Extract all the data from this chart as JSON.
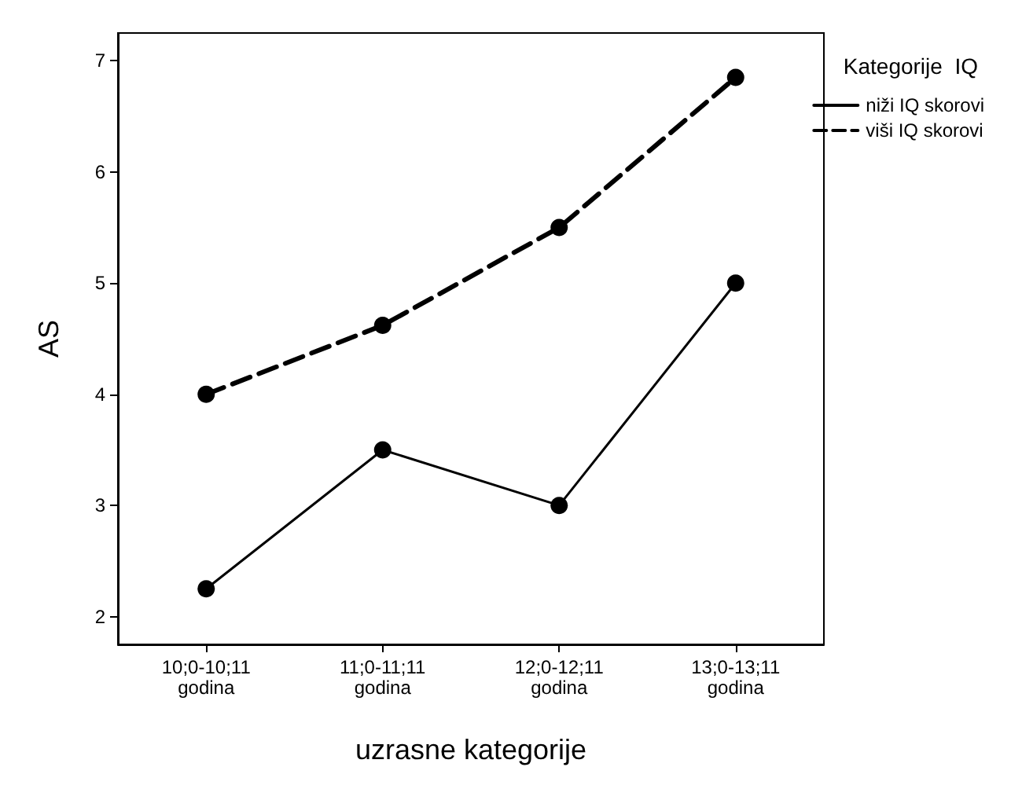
{
  "chart_data": {
    "type": "line",
    "xlabel": "uzrasne kategorije",
    "ylabel": "AS",
    "legend_title": "Kategorije  IQ",
    "legend": "top right",
    "marker": "circle",
    "grid": false,
    "categories": [
      "10;0-10;11\ngodina",
      "11;0-11;11\ngodina",
      "12;0-12;11\ngodina",
      "13;0-13;11\ngodina"
    ],
    "ylim": [
      1.75,
      7.25
    ],
    "yticks": [
      2,
      3,
      4,
      5,
      6,
      7
    ],
    "series": [
      {
        "name": "niži IQ skorovi",
        "color": "#000000",
        "line_style": "solid",
        "values": [
          2.25,
          3.5,
          3.0,
          5.0
        ]
      },
      {
        "name": "viši IQ skorovi",
        "color": "#000000",
        "line_style": "dashed",
        "values": [
          4.0,
          4.62,
          5.5,
          6.85
        ]
      }
    ]
  }
}
